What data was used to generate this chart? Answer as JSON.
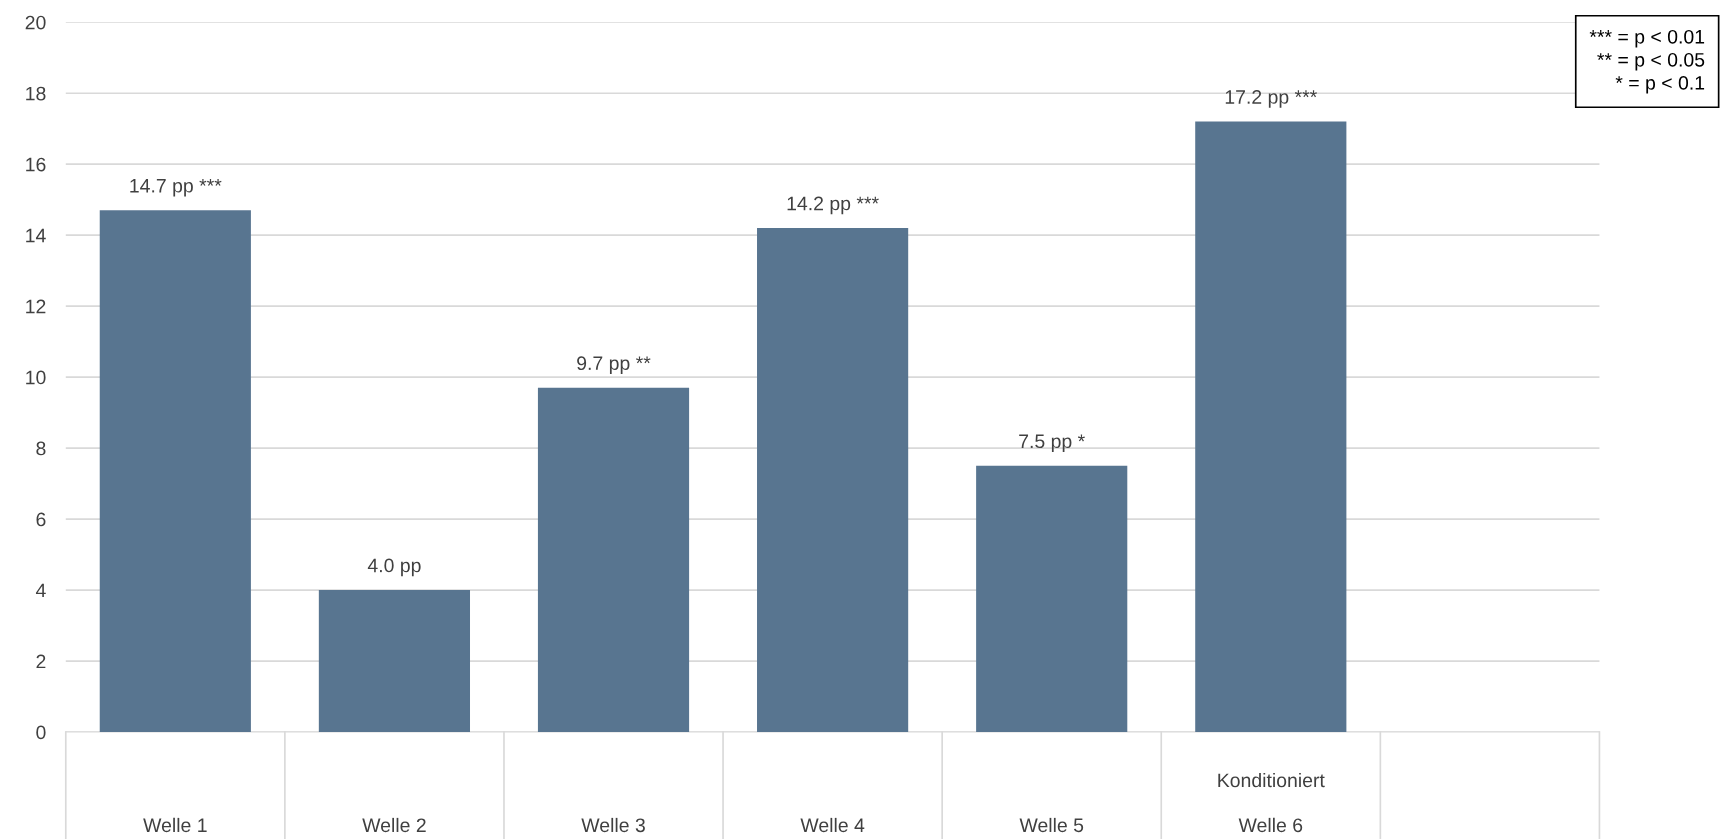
{
  "chart_data": {
    "type": "bar",
    "categories": [
      "Welle 1",
      "Welle 2",
      "Welle 3",
      "Welle 4",
      "Welle 5",
      "Konditioniert\nWelle 6",
      null
    ],
    "values": [
      14.7,
      4.0,
      9.7,
      14.2,
      7.5,
      17.2,
      null
    ],
    "value_labels": [
      "14.7 pp ***",
      "4.0 pp",
      "9.7 pp **",
      "14.2 pp ***",
      "7.5 pp *",
      "17.2 pp ***",
      null
    ],
    "color": "#587590",
    "ylim": [
      0,
      20
    ],
    "yticks": [
      0,
      2,
      4,
      6,
      8,
      10,
      12,
      14,
      16,
      18,
      20
    ],
    "grid": "y",
    "annotations": [
      "*** = p < 0.01",
      "** = p < 0.05",
      "* = p < 0.1"
    ]
  }
}
